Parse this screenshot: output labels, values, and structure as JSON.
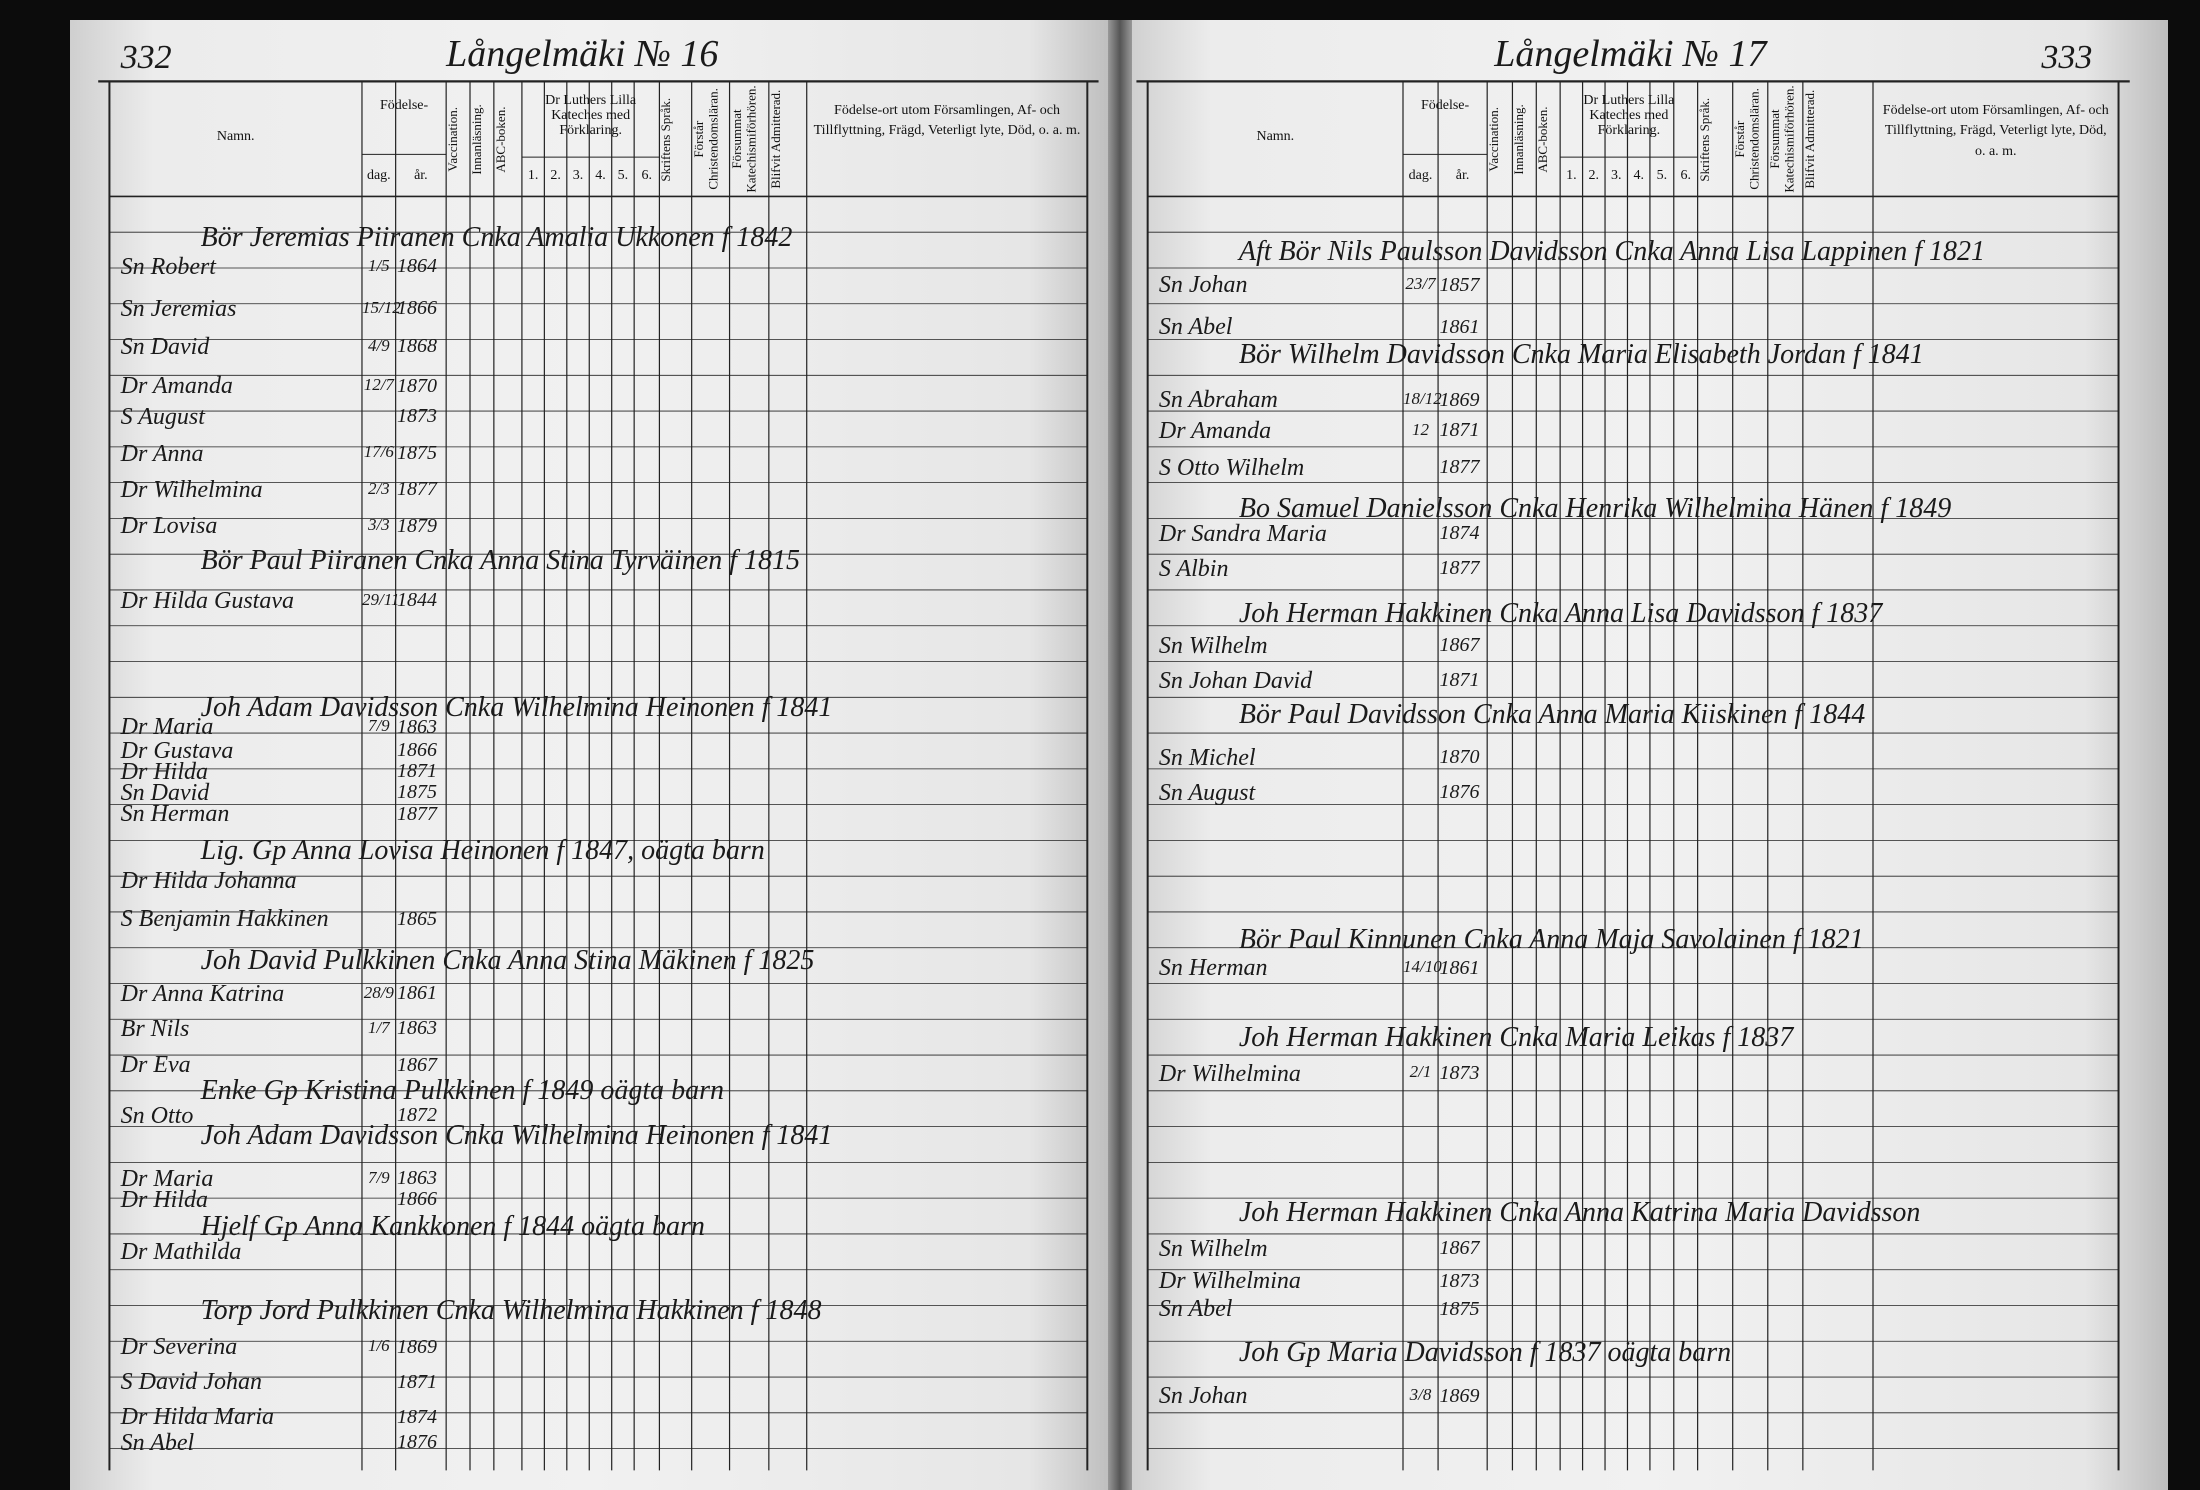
{
  "left_page": {
    "page_number": "332",
    "title": "Långelmäki № 16",
    "headers": {
      "name": "Namn.",
      "birth": "Födelse-",
      "day": "dag.",
      "year": "år.",
      "vaccination": "Vaccination.",
      "reading": "Innanläsning.",
      "abc_book": "ABC-boken.",
      "catechism": "Dr Luthers Lilla Kateches med Förklaring.",
      "catechism_columns": [
        "1.",
        "2.",
        "3.",
        "4.",
        "5.",
        "6."
      ],
      "scripture": "Skriftens Språk.",
      "understands": "Förstår Christendomsläran.",
      "neglected": "Försummat Katechismiförhören.",
      "admitted": "Blifvit Admitterad.",
      "remarks": "Födelse-ort utom Församlingen, Af- och Tillflyttning, Frägd, Veterligt lyte, Död, o. a. m."
    },
    "rows": [
      {
        "household": "Bör Jeremias Piiranen Cnka Amalia Ukkonen f 1842"
      },
      {
        "name": "Sn Robert",
        "day": "1/5",
        "year": "1864"
      },
      {
        "name": "Sn Jeremias",
        "day": "15/12",
        "year": "1866"
      },
      {
        "name": "Sn David",
        "day": "4/9",
        "year": "1868"
      },
      {
        "name": "Dr Amanda",
        "day": "12/7",
        "year": "1870"
      },
      {
        "name": "S August",
        "year": "1873"
      },
      {
        "name": "Dr Anna",
        "day": "17/6",
        "year": "1875"
      },
      {
        "name": "Dr Wilhelmina",
        "day": "2/3",
        "year": "1877"
      },
      {
        "name": "Dr Lovisa",
        "day": "3/3",
        "year": "1879"
      },
      {
        "household": "Bör Paul Piiranen Cnka Anna Stina Tyrväinen f 1815"
      },
      {
        "name": "Dr Hilda Gustava",
        "day": "29/11",
        "year": "1844"
      },
      {
        "household": "Joh Adam Davidsson Cnka Wilhelmina Heinonen f 1841"
      },
      {
        "name": "Dr Maria",
        "day": "7/9",
        "year": "1863"
      },
      {
        "name": "Dr Gustava",
        "year": "1866"
      },
      {
        "name": "Dr Hilda",
        "year": "1871"
      },
      {
        "name": "Sn David",
        "year": "1875"
      },
      {
        "name": "Sn Herman",
        "year": "1877"
      },
      {
        "household": "Lig. Gp Anna Lovisa Heinonen f 1847, oägta barn"
      },
      {
        "name": "Dr Hilda Johanna"
      },
      {
        "name": "S Benjamin Hakkinen",
        "year": "1865"
      },
      {
        "household": "Joh David Pulkkinen Cnka Anna Stina Mäkinen f 1825"
      },
      {
        "name": "Dr Anna Katrina",
        "day": "28/9",
        "year": "1861"
      },
      {
        "name": "Br Nils",
        "day": "1/7",
        "year": "1863"
      },
      {
        "name": "Dr Eva",
        "year": "1867"
      },
      {
        "household": "Enke Gp Kristina Pulkkinen f 1849 oägta barn"
      },
      {
        "name": "Sn Otto",
        "year": "1872"
      },
      {
        "household": "Joh Adam Davidsson Cnka Wilhelmina Heinonen f 1841"
      },
      {
        "name": "Dr Maria",
        "day": "7/9",
        "year": "1863"
      },
      {
        "name": "Dr Hilda",
        "year": "1866"
      },
      {
        "household": "Hjelf Gp Anna Kankkonen f 1844 oägta barn"
      },
      {
        "name": "Dr Mathilda"
      },
      {
        "household": "Torp Jord Pulkkinen Cnka Wilhelmina Hakkinen f 1848"
      },
      {
        "name": "Dr Severina",
        "day": "1/6",
        "year": "1869"
      },
      {
        "name": "S David Johan",
        "year": "1871"
      },
      {
        "name": "Dr Hilda Maria",
        "year": "1874"
      },
      {
        "name": "Sn Abel",
        "year": "1876"
      }
    ]
  },
  "right_page": {
    "page_number": "333",
    "title": "Långelmäki № 17",
    "headers": {
      "name": "Namn.",
      "birth": "Födelse-",
      "day": "dag.",
      "year": "år.",
      "vaccination": "Vaccination.",
      "reading": "Innanläsning.",
      "abc_book": "ABC-boken.",
      "catechism": "Dr Luthers Lilla Kateches med Förklaring.",
      "catechism_columns": [
        "1.",
        "2.",
        "3.",
        "4.",
        "5.",
        "6."
      ],
      "scripture": "Skriftens Språk.",
      "understands": "Förstår Christendomsläran.",
      "neglected": "Försummat Katechismiförhören.",
      "admitted": "Blifvit Admitterad.",
      "remarks": "Födelse-ort utom Församlingen, Af- och Tillflyttning, Frägd, Veterligt lyte, Död, o. a. m."
    },
    "rows": [
      {
        "household": "Aft Bör Nils Paulsson Davidsson Cnka Anna Lisa Lappinen f 1821"
      },
      {
        "name": "Sn Johan",
        "day": "23/7",
        "year": "1857"
      },
      {
        "name": "Sn Abel",
        "year": "1861"
      },
      {
        "household": "Bör Wilhelm Davidsson Cnka Maria Elisabeth Jordan f 1841"
      },
      {
        "name": "Sn Abraham",
        "day": "18/12",
        "year": "1869"
      },
      {
        "name": "Dr Amanda",
        "day": "12",
        "year": "1871"
      },
      {
        "name": "S Otto Wilhelm",
        "year": "1877"
      },
      {
        "household": "Bo Samuel Danielsson Cnka Henrika Wilhelmina Hänen f 1849"
      },
      {
        "name": "Dr Sandra Maria",
        "year": "1874"
      },
      {
        "name": "S Albin",
        "year": "1877"
      },
      {
        "household": "Joh Herman Hakkinen Cnka Anna Lisa Davidsson f 1837"
      },
      {
        "name": "Sn Wilhelm",
        "year": "1867"
      },
      {
        "name": "Sn Johan David",
        "year": "1871"
      },
      {
        "household": "Bör Paul Davidsson Cnka Anna Maria Kiiskinen f 1844"
      },
      {
        "name": "Sn Michel",
        "year": "1870"
      },
      {
        "name": "Sn August",
        "year": "1876"
      },
      {
        "household": "Bör Paul Kinnunen Cnka Anna Maja Savolainen f 1821"
      },
      {
        "name": "Sn Herman",
        "day": "14/10",
        "year": "1861"
      },
      {
        "household": "Joh Herman Hakkinen Cnka Maria Leikas f 1837"
      },
      {
        "name": "Dr Wilhelmina",
        "day": "2/1",
        "year": "1873"
      },
      {
        "household": "Joh Herman Hakkinen Cnka Anna Katrina Maria Davidsson"
      },
      {
        "name": "Sn Wilhelm",
        "year": "1867"
      },
      {
        "name": "Dr Wilhelmina",
        "year": "1873"
      },
      {
        "name": "Sn Abel",
        "year": "1875"
      },
      {
        "household": "Joh Gp Maria Davidsson f 1837 oägta barn"
      },
      {
        "name": "Sn Johan",
        "day": "3/8",
        "year": "1869"
      }
    ]
  }
}
